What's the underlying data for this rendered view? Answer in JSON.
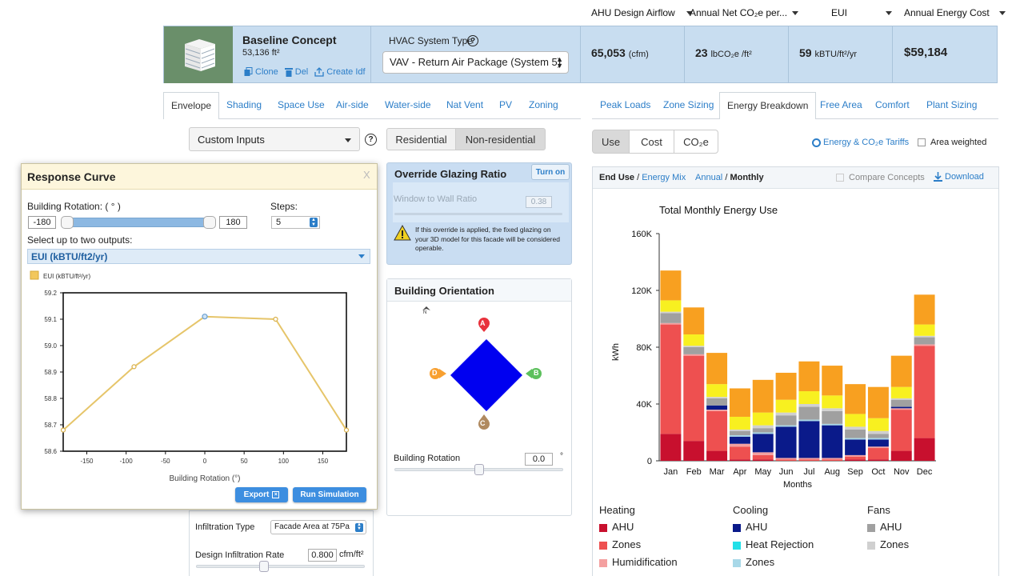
{
  "metric_dropdowns": [
    {
      "label": "AHU Design Airflow"
    },
    {
      "label": "Annual Net CO₂e per..."
    },
    {
      "label": "EUI"
    },
    {
      "label": "Annual Energy Cost"
    }
  ],
  "concept": {
    "title": "Baseline Concept",
    "area": "53,136 ft²",
    "clone": "Clone",
    "del": "Del",
    "create_idf": "Create Idf",
    "hvac_label": "HVAC System Type",
    "hvac_value": "VAV - Return Air Package (System 5)",
    "airflow_value": "65,053",
    "airflow_unit": "(cfm)",
    "co2_value": "23",
    "co2_unit": "lbCO₂e /ft²",
    "eui_value": "59",
    "eui_unit": "kBTU/ft²/yr",
    "cost_value": "$59,184"
  },
  "left_tabs": [
    "Envelope",
    "Shading",
    "Space Use",
    "Air-side",
    "Water-side",
    "Nat Vent",
    "PV",
    "Zoning"
  ],
  "right_tabs": [
    "Peak Loads",
    "Zone Sizing",
    "Energy Breakdown",
    "Free Area",
    "Comfort",
    "Plant Sizing"
  ],
  "custom_inputs": "Custom Inputs",
  "help_glyph": "?",
  "bldg_type": {
    "residential": "Residential",
    "nonresidential": "Non-residential"
  },
  "glazing": {
    "title": "Override Glazing Ratio",
    "turn_on": "Turn on",
    "wwr_label": "Window to Wall Ratio",
    "wwr_value": "0.38",
    "note": "If this override is applied, the fixed glazing on your 3D model for this facade will be considered operable."
  },
  "orientation": {
    "title": "Building Orientation",
    "north": "N",
    "faces": {
      "a": "A",
      "b": "B",
      "c": "C",
      "d": "D"
    },
    "rotation_label": "Building Rotation",
    "rotation_value": "0.0",
    "rotation_unit": "°",
    "rotation_level": 0.5
  },
  "infiltration": {
    "type_label": "Infiltration Type",
    "type_value": "Facade Area at 75Pa",
    "rate_label": "Design Infiltration Rate",
    "rate_value": "0.800",
    "rate_unit": "cfm/ft²"
  },
  "response_curve": {
    "title": "Response Curve",
    "close": "X",
    "rotation_label": "Building Rotation: ( ° )",
    "min": "-180",
    "max": "180",
    "steps_label": "Steps:",
    "steps_value": "5",
    "select_label": "Select up to two outputs:",
    "output_value": "EUI (kBTU/ft2/yr)",
    "export": "Export",
    "run": "Run Simulation"
  },
  "energy_tabs": {
    "use": "Use",
    "cost": "Cost",
    "co2": "CO₂e",
    "tariffs": "Energy & CO₂e Tariffs",
    "area_weighted": "Area weighted"
  },
  "breakdown": {
    "end_use": "End Use",
    "energy_mix": "Energy Mix",
    "annual": "Annual",
    "monthly": "Monthly",
    "compare": "Compare Concepts",
    "download": "Download"
  },
  "legend": {
    "heating": {
      "title": "Heating",
      "items": [
        "AHU",
        "Zones",
        "Humidification"
      ]
    },
    "cooling": {
      "title": "Cooling",
      "items": [
        "AHU",
        "Heat Rejection",
        "Zones"
      ]
    },
    "fans": {
      "title": "Fans",
      "items": [
        "AHU",
        "Zones"
      ]
    }
  },
  "colors": {
    "heat_ahu": "#c8102e",
    "heat_zones": "#ee5050",
    "humid": "#f4a0a0",
    "cool_ahu": "#0a1a8a",
    "heat_rej": "#22e0e8",
    "cool_zones": "#a8d8e8",
    "fan_ahu": "#a0a0a0",
    "fan_zones": "#d0d0d0",
    "lighting": "#f8f020",
    "equip": "#f8a020",
    "accent": "#2c7ec8"
  },
  "chart_data": [
    {
      "type": "line",
      "title": "",
      "legend": [
        "EUI (kBTU/ft²/yr)"
      ],
      "xlabel": "Building Rotation (°)",
      "ylabel": "",
      "x": [
        -180,
        -90,
        0,
        90,
        180
      ],
      "values": [
        58.68,
        58.92,
        59.11,
        59.1,
        58.68
      ],
      "xlim": [
        -180,
        180
      ],
      "ylim": [
        58.6,
        59.2
      ],
      "x_ticks": [
        -150,
        -100,
        -50,
        0,
        50,
        100,
        150
      ],
      "y_ticks": [
        58.6,
        58.7,
        58.8,
        58.9,
        59.0,
        59.1,
        59.2
      ],
      "y_tick_labels": [
        "58.6",
        "58.7",
        "58.8",
        "58.9",
        "59.0",
        "59.1",
        "59.2"
      ],
      "grid": false
    },
    {
      "type": "bar",
      "title": "Total Monthly Energy Use",
      "xlabel": "Months",
      "ylabel": "kWh",
      "categories": [
        "Jan",
        "Feb",
        "Mar",
        "Apr",
        "May",
        "Jun",
        "Jul",
        "Aug",
        "Sep",
        "Oct",
        "Nov",
        "Dec"
      ],
      "ylim": [
        0,
        160000
      ],
      "y_ticks": [
        0,
        40000,
        80000,
        120000,
        160000
      ],
      "y_tick_labels": [
        "0",
        "40K",
        "80K",
        "120K",
        "160K"
      ],
      "stacked": true,
      "series": [
        {
          "values": [
            19000,
            14000,
            7000,
            1000,
            1000,
            0,
            0,
            0,
            1000,
            1000,
            7000,
            16000
          ]
        },
        {
          "values": [
            77000,
            60000,
            28000,
            9000,
            3000,
            1000,
            1000,
            1000,
            2000,
            8000,
            29000,
            65000
          ]
        },
        {
          "values": [
            1000,
            1000,
            1000,
            2000,
            2000,
            1000,
            1000,
            1000,
            1000,
            1000,
            1000,
            1000
          ]
        },
        {
          "values": [
            0,
            0,
            3000,
            5000,
            13000,
            22000,
            26000,
            23000,
            11000,
            5000,
            1000,
            0
          ]
        },
        {
          "values": [
            0,
            0,
            0,
            0,
            0,
            0,
            0,
            0,
            0,
            0,
            0,
            0
          ]
        },
        {
          "values": [
            0,
            0,
            0,
            1000,
            1000,
            1000,
            1000,
            1000,
            1000,
            1000,
            0,
            0
          ]
        },
        {
          "values": [
            7000,
            5000,
            5000,
            3000,
            3000,
            7000,
            9000,
            9000,
            6000,
            3000,
            5000,
            5000
          ]
        },
        {
          "values": [
            1000,
            1000,
            1000,
            1000,
            2000,
            2000,
            2000,
            2000,
            2000,
            2000,
            1000,
            1000
          ]
        },
        {
          "values": [
            8000,
            8000,
            9000,
            9000,
            9000,
            9000,
            9000,
            9000,
            9000,
            9000,
            8000,
            8000
          ]
        },
        {
          "values": [
            21000,
            19000,
            22000,
            20000,
            23000,
            19000,
            21000,
            21000,
            21000,
            22000,
            22000,
            21000
          ]
        }
      ]
    }
  ]
}
